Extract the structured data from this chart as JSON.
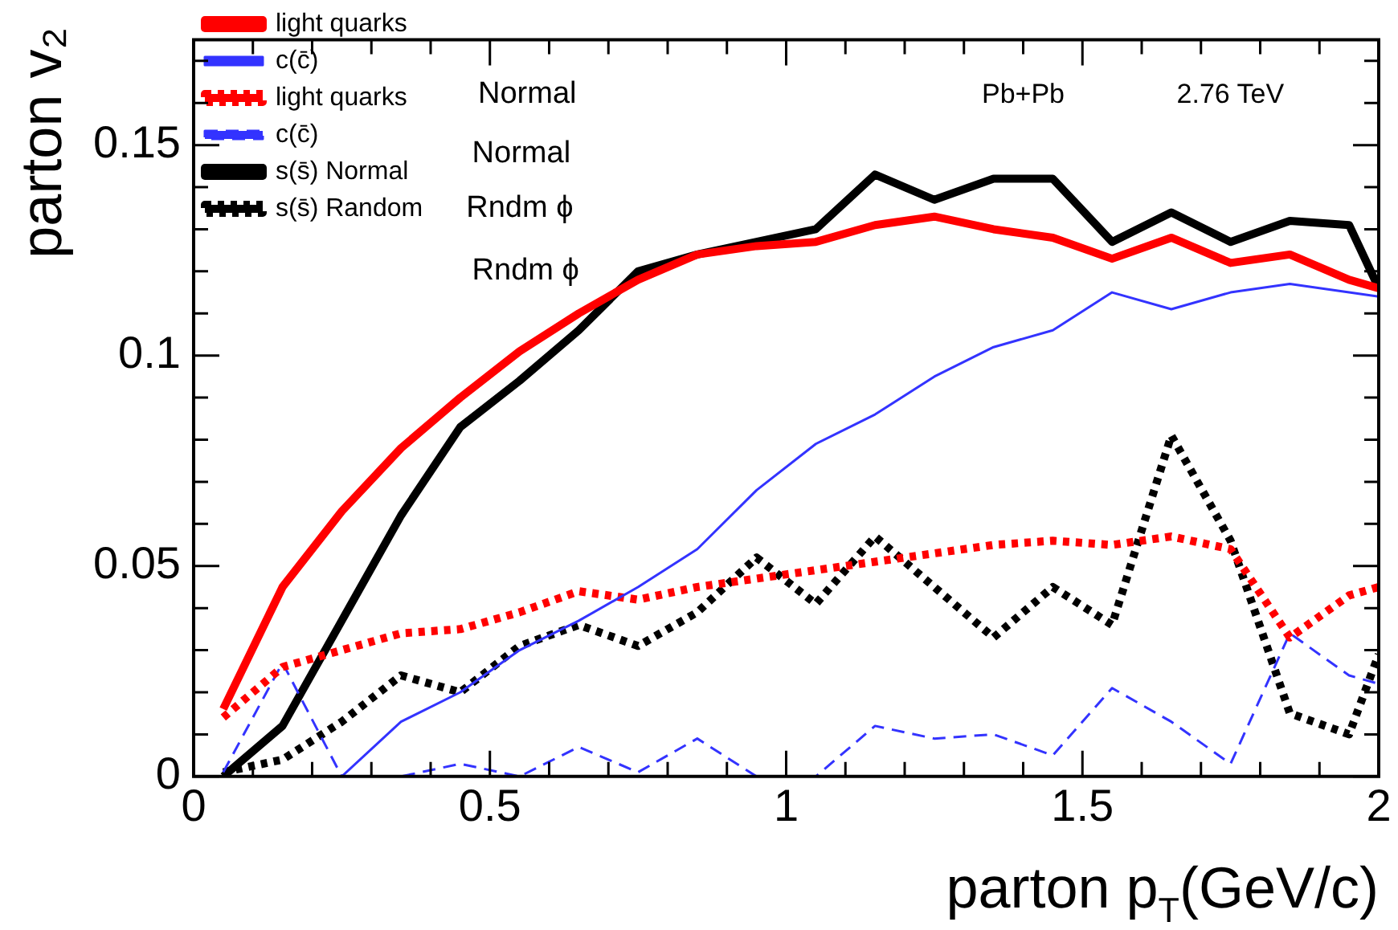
{
  "chart_data": {
    "type": "line",
    "xlabel": "parton p$_{T}$(GeV/c)",
    "ylabel": "parton v₂",
    "x": [
      0.05,
      0.15,
      0.25,
      0.35,
      0.45,
      0.55,
      0.65,
      0.75,
      0.85,
      0.95,
      1.05,
      1.15,
      1.25,
      1.35,
      1.45,
      1.55,
      1.65,
      1.75,
      1.85,
      1.95,
      2.0
    ],
    "series": [
      {
        "name": "light quarks",
        "color": "#ff0000",
        "line_style": "solid",
        "values": [
          0.016,
          0.045,
          0.063,
          0.078,
          0.09,
          0.101,
          0.11,
          0.118,
          0.124,
          0.126,
          0.127,
          0.131,
          0.133,
          0.13,
          0.128,
          0.123,
          0.128,
          0.122,
          0.124,
          0.118,
          0.116
        ]
      },
      {
        "name": "c(c̄)",
        "color": "#3333ff",
        "line_style": "solid",
        "values": [
          null,
          null,
          0,
          0.013,
          0.02,
          0.03,
          0.037,
          0.045,
          0.054,
          0.068,
          0.079,
          0.086,
          0.095,
          0.102,
          0.106,
          0.115,
          0.111,
          0.115,
          0.117,
          0.115,
          0.114
        ]
      },
      {
        "name": "light quarks",
        "color": "#ff0000",
        "line_style": "dotted",
        "values": [
          0.014,
          0.026,
          0.03,
          0.034,
          0.035,
          0.039,
          0.044,
          0.042,
          0.045,
          0.047,
          0.049,
          0.051,
          0.053,
          0.055,
          0.056,
          0.055,
          0.057,
          0.054,
          0.033,
          0.043,
          0.045
        ]
      },
      {
        "name": "c(c̄)",
        "color": "#3333ff",
        "line_style": "dashed",
        "values": [
          0.001,
          0.027,
          0,
          0,
          0.003,
          0,
          0.007,
          0.001,
          0.009,
          0,
          0,
          0.012,
          0.009,
          0.01,
          0.005,
          0.021,
          0.013,
          0.003,
          0.034,
          0.024,
          0.022
        ]
      },
      {
        "name": "s(s̄) Normal",
        "color": "#000000",
        "line_style": "solid",
        "values": [
          0,
          0.012,
          0.037,
          0.062,
          0.083,
          0.094,
          0.106,
          0.12,
          0.124,
          0.127,
          0.13,
          0.143,
          0.137,
          0.142,
          0.142,
          0.127,
          0.134,
          0.127,
          0.132,
          0.131,
          0.116
        ]
      },
      {
        "name": "s(s̄) Random",
        "color": "#000000",
        "line_style": "dotted",
        "values": [
          0.001,
          0.004,
          0.013,
          0.024,
          0.02,
          0.031,
          0.036,
          0.031,
          0.039,
          0.052,
          0.041,
          0.057,
          0.045,
          0.033,
          0.045,
          0.036,
          0.081,
          0.056,
          0.015,
          0.01,
          0.029
        ]
      }
    ],
    "xlim": [
      0,
      2
    ],
    "xticks": [
      0,
      0.5,
      1,
      1.5,
      2
    ],
    "ylim": [
      0,
      0.175
    ],
    "yticks": [
      0,
      0.05,
      0.1,
      0.15
    ],
    "grid": false,
    "legend": "top left",
    "marker": "none",
    "annotations": [
      "Normal",
      "Normal",
      "Rndm ϕ",
      "Rndm ϕ",
      "Pb+Pb",
      "2.76 TeV"
    ]
  }
}
